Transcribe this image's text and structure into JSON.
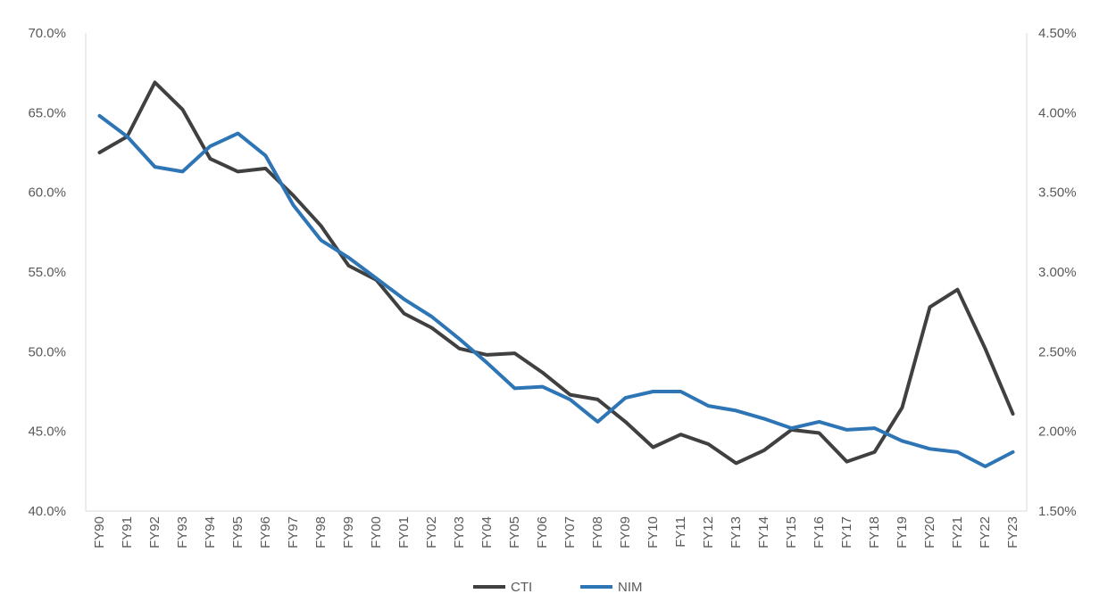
{
  "chart_data": {
    "type": "line",
    "title": "",
    "xlabel": "",
    "ylabel": "",
    "categories": [
      "FY90",
      "FY91",
      "FY92",
      "FY93",
      "FY94",
      "FY95",
      "FY96",
      "FY97",
      "FY98",
      "FY99",
      "FY00",
      "FY01",
      "FY02",
      "FY03",
      "FY04",
      "FY05",
      "FY06",
      "FY07",
      "FY08",
      "FY09",
      "FY10",
      "FY11",
      "FY12",
      "FY13",
      "FY14",
      "FY15",
      "FY16",
      "FY17",
      "FY18",
      "FY19",
      "FY20",
      "FY21",
      "FY22",
      "FY23"
    ],
    "y_left": {
      "min": 40.0,
      "max": 70.0,
      "step": 5.0,
      "tick_labels": [
        "40.0%",
        "45.0%",
        "50.0%",
        "55.0%",
        "60.0%",
        "65.0%",
        "70.0%"
      ]
    },
    "y_right": {
      "min": 1.5,
      "max": 4.5,
      "step": 0.5,
      "tick_labels": [
        "1.50%",
        "2.00%",
        "2.50%",
        "3.00%",
        "3.50%",
        "4.00%",
        "4.50%"
      ]
    },
    "series": [
      {
        "name": "CTI",
        "axis": "left",
        "color": "#404040",
        "values": [
          62.5,
          63.5,
          66.9,
          65.2,
          62.1,
          61.3,
          61.5,
          59.8,
          57.9,
          55.4,
          54.5,
          52.4,
          51.5,
          50.2,
          49.8,
          49.9,
          48.7,
          47.3,
          47.0,
          45.6,
          44.0,
          44.8,
          44.2,
          43.0,
          43.8,
          45.1,
          44.9,
          43.1,
          43.7,
          46.5,
          52.8,
          53.9,
          50.2,
          46.1
        ]
      },
      {
        "name": "NIM",
        "axis": "right",
        "color": "#2E75B6",
        "values": [
          3.98,
          3.85,
          3.66,
          3.63,
          3.79,
          3.87,
          3.73,
          3.42,
          3.2,
          3.09,
          2.96,
          2.83,
          2.72,
          2.58,
          2.43,
          2.27,
          2.28,
          2.2,
          2.06,
          2.21,
          2.25,
          2.25,
          2.16,
          2.13,
          2.08,
          2.02,
          2.06,
          2.01,
          2.02,
          1.94,
          1.89,
          1.87,
          1.78,
          1.87
        ]
      }
    ],
    "legend": {
      "position": "bottom",
      "entries": [
        "CTI",
        "NIM"
      ]
    },
    "grid": false
  }
}
